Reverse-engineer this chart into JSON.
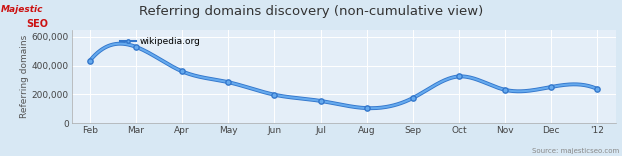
{
  "title": "Referring domains discovery (non-cumulative view)",
  "ylabel": "Referring domains",
  "source_text": "Source: majesticseo.com",
  "x_labels": [
    "Feb",
    "Mar",
    "Apr",
    "May",
    "Jun",
    "Jul",
    "Aug",
    "Sep",
    "Oct",
    "Nov",
    "Dec",
    "'12"
  ],
  "x_values": [
    0,
    1,
    2,
    3,
    4,
    5,
    6,
    7,
    8,
    9,
    10,
    11
  ],
  "y_values": [
    435000,
    530000,
    360000,
    285000,
    198000,
    155000,
    105000,
    175000,
    325000,
    232000,
    252000,
    238000
  ],
  "ylim": [
    0,
    650000
  ],
  "yticks": [
    0,
    200000,
    400000,
    600000
  ],
  "ytick_labels": [
    "0",
    "200,000",
    "400,000",
    "600,000"
  ],
  "line_color_dark": "#3377cc",
  "line_color_light": "#66aaee",
  "bg_color": "#d8e8f4",
  "plot_bg": "#e4eef8",
  "grid_color": "#ffffff",
  "legend_label": "wikipedia.org",
  "title_fontsize": 9.5,
  "label_fontsize": 6.5,
  "tick_fontsize": 6.5,
  "source_fontsize": 5.0
}
